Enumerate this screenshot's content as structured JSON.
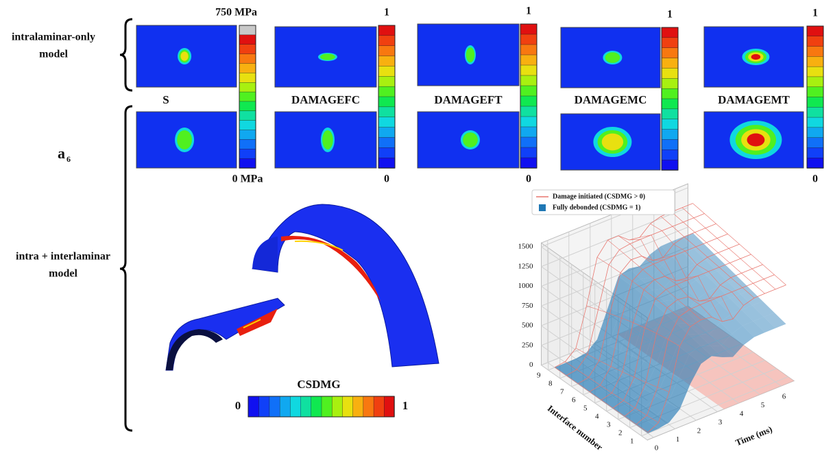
{
  "row_labels": [
    {
      "lines": [
        "intralaminar-only",
        "model"
      ]
    },
    {
      "lines": [
        "intra + interlaminar",
        "model"
      ]
    }
  ],
  "case_label": {
    "text": "a",
    "subscript": "6"
  },
  "panels": [
    {
      "title": "S",
      "max_label": "750 MPa",
      "min_label": "0 MPa"
    },
    {
      "title": "DAMAGEFC",
      "max_label": "1",
      "min_label": "0"
    },
    {
      "title": "DAMAGEFT",
      "max_label": "1",
      "min_label": "0"
    },
    {
      "title": "DAMAGEMC",
      "max_label": "1"
    },
    {
      "title": "DAMAGEMT",
      "max_label": "1",
      "min_label": "0"
    }
  ],
  "colorbar": {
    "title": "CSDMG",
    "min_label": "0",
    "max_label": "1"
  },
  "chart_data": {
    "type": "surface3d",
    "series": [
      {
        "name": "Damage initiated (CSDMG > 0)",
        "color": "#e8766e"
      },
      {
        "name": "Fully debonded (CSDMG = 1)",
        "color": "#1f77b4"
      }
    ],
    "xlabel": "Time (ms)",
    "ylabel": "Interface number",
    "xticks": [
      0,
      1,
      2,
      3,
      4,
      5,
      6
    ],
    "yticks": [
      1,
      2,
      3,
      4,
      5,
      6,
      7,
      8,
      9
    ],
    "zticks": [
      0,
      250,
      500,
      750,
      1000,
      1250,
      1500
    ],
    "grid": true
  }
}
